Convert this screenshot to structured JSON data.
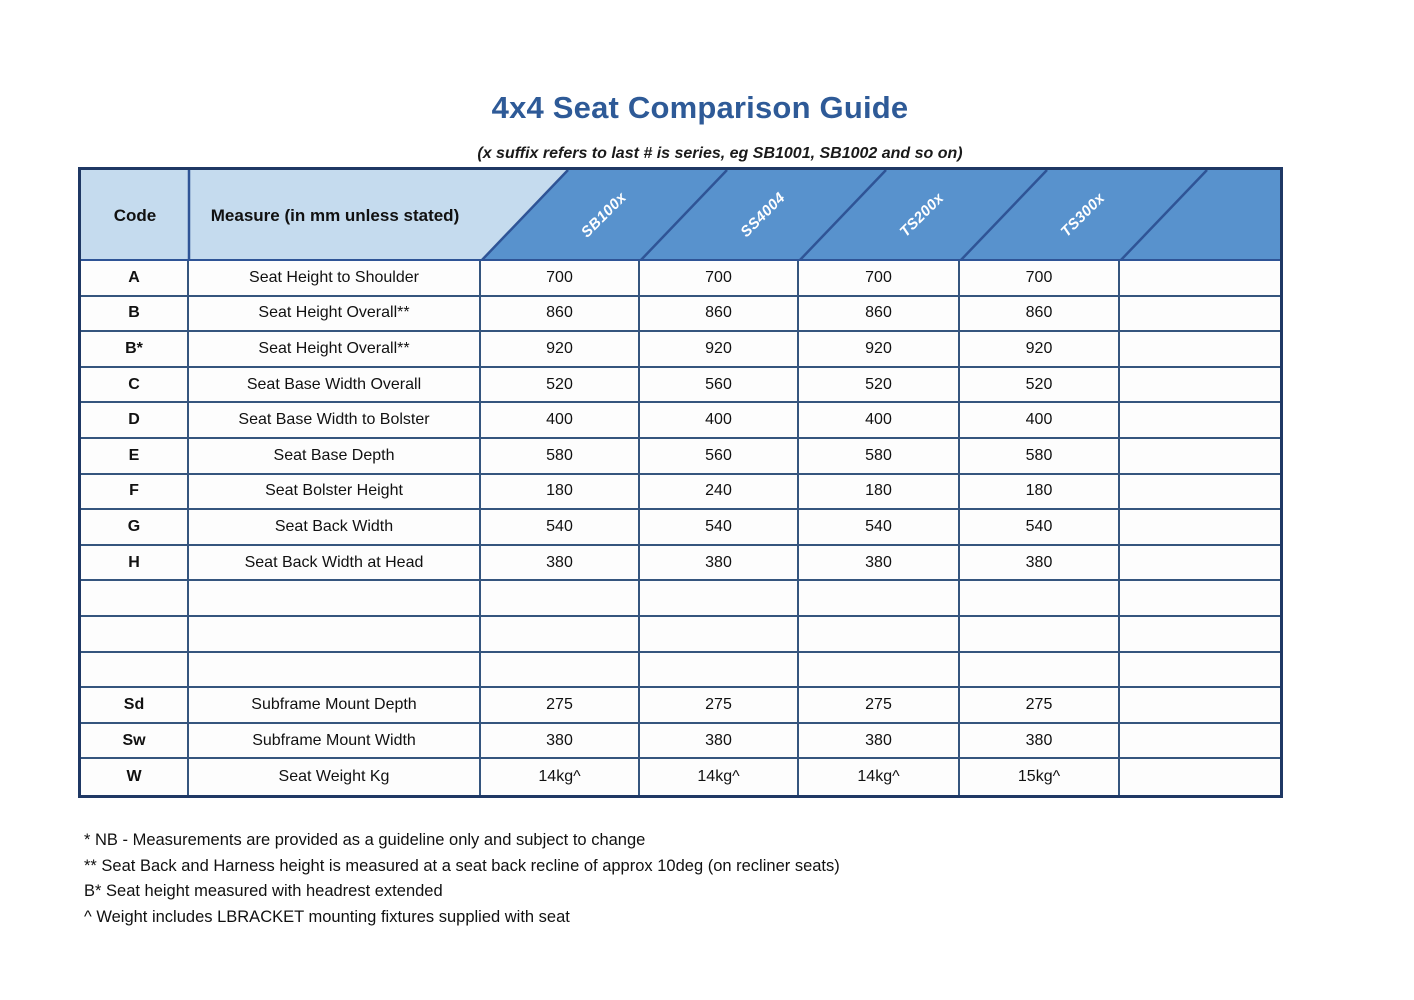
{
  "header": {
    "title": "4x4 Seat Comparison Guide",
    "subtitle": "(x suffix refers to last # is series, eg SB1001, SB1002 and so on)"
  },
  "table": {
    "code_header": "Code",
    "measure_header": "Measure (in mm unless stated)",
    "product_columns": [
      "SB100x",
      "SS4004",
      "TS200x",
      "TS300x"
    ],
    "rows": [
      {
        "code": "A",
        "measure": "Seat Height to Shoulder",
        "values": [
          "700",
          "700",
          "700",
          "700",
          ""
        ]
      },
      {
        "code": "B",
        "measure": "Seat Height Overall**",
        "values": [
          "860",
          "860",
          "860",
          "860",
          ""
        ]
      },
      {
        "code": "B*",
        "measure": "Seat Height Overall**",
        "values": [
          "920",
          "920",
          "920",
          "920",
          ""
        ]
      },
      {
        "code": "C",
        "measure": "Seat Base Width Overall",
        "values": [
          "520",
          "560",
          "520",
          "520",
          ""
        ]
      },
      {
        "code": "D",
        "measure": "Seat Base Width to Bolster",
        "values": [
          "400",
          "400",
          "400",
          "400",
          ""
        ]
      },
      {
        "code": "E",
        "measure": "Seat Base Depth",
        "values": [
          "580",
          "560",
          "580",
          "580",
          ""
        ]
      },
      {
        "code": "F",
        "measure": "Seat Bolster Height",
        "values": [
          "180",
          "240",
          "180",
          "180",
          ""
        ]
      },
      {
        "code": "G",
        "measure": "Seat Back Width",
        "values": [
          "540",
          "540",
          "540",
          "540",
          ""
        ]
      },
      {
        "code": "H",
        "measure": "Seat Back Width at Head",
        "values": [
          "380",
          "380",
          "380",
          "380",
          ""
        ]
      },
      {
        "code": "",
        "measure": "",
        "values": [
          "",
          "",
          "",
          "",
          ""
        ]
      },
      {
        "code": "",
        "measure": "",
        "values": [
          "",
          "",
          "",
          "",
          ""
        ]
      },
      {
        "code": "",
        "measure": "",
        "values": [
          "",
          "",
          "",
          "",
          ""
        ]
      },
      {
        "code": "Sd",
        "measure": "Subframe Mount Depth",
        "values": [
          "275",
          "275",
          "275",
          "275",
          ""
        ]
      },
      {
        "code": "Sw",
        "measure": "Subframe Mount Width",
        "values": [
          "380",
          "380",
          "380",
          "380",
          ""
        ]
      },
      {
        "code": "W",
        "measure": "Seat Weight Kg",
        "values": [
          "14kg^",
          "14kg^",
          "14kg^",
          "15kg^",
          ""
        ]
      }
    ]
  },
  "footnotes": [
    "* NB - Measurements are provided as a guideline only and subject to change",
    "** Seat Back and Harness height is measured at a seat back recline of approx 10deg (on recliner seats)",
    "B* Seat height measured with headrest extended",
    "^ Weight includes LBRACKET mounting fixtures supplied with seat"
  ],
  "colors": {
    "title_blue": "#2e5a97",
    "band_blue": "#5892cd",
    "light_blue": "#c5dbee",
    "border_navy": "#1f3864",
    "grid_blue": "#35557e"
  }
}
